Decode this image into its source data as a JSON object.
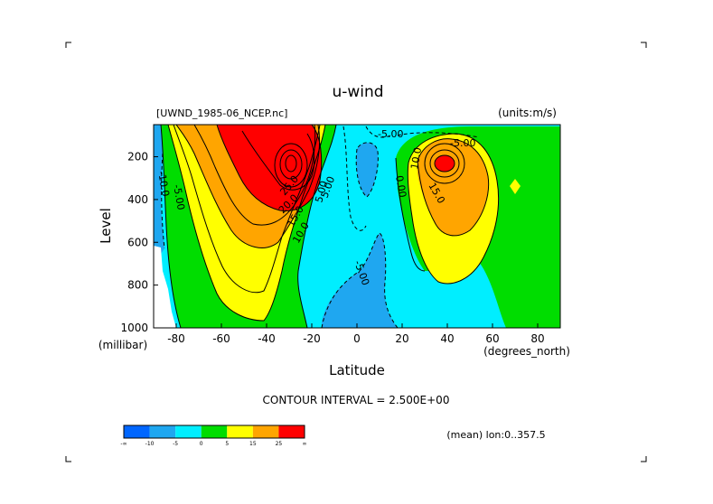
{
  "chart_data": {
    "type": "contour",
    "title": "u-wind",
    "file_label": "[UWND_1985-06_NCEP.nc]",
    "units_label": "(units:m/s)",
    "xlabel": "Latitude",
    "x_units": "(degrees_north)",
    "ylabel": "Level",
    "y_units": "(millibar)",
    "xlim": [
      -90,
      90
    ],
    "ylim": [
      1000,
      50
    ],
    "y_inverted": true,
    "x_ticks": [
      -80,
      -60,
      -40,
      -20,
      0,
      20,
      40,
      60,
      80
    ],
    "y_ticks": [
      200,
      400,
      600,
      800,
      1000
    ],
    "contour_interval_text": "CONTOUR INTERVAL = 2.500E+00",
    "contour_interval": 2.5,
    "mean_text": "(mean) lon:0..357.5",
    "colorbar": {
      "labels": [
        "-∞",
        "-10",
        "-5",
        "0",
        "5",
        "15",
        "25",
        "∞"
      ],
      "colors": [
        "#0066ff",
        "#1fa7f0",
        "#00eeff",
        "#00dd00",
        "#ffff00",
        "#ffa500",
        "#ff0000"
      ]
    },
    "contour_labels": [
      "-10.0",
      "-5.00",
      "25.0",
      "20.0",
      "15.0",
      "10.0",
      "5.00",
      "-5.00",
      "0.00",
      "-5.00",
      "-5.00",
      "10.0",
      "15.0",
      "5.00"
    ],
    "features": [
      {
        "name": "southern-hemisphere-jet",
        "lat": -30,
        "level": 200,
        "max_value": 35
      },
      {
        "name": "northern-hemisphere-jet",
        "lat": 40,
        "level": 200,
        "max_value": 27.5
      },
      {
        "name": "equatorial-easterlies",
        "lat": 0,
        "level": 200,
        "min_value": -10
      }
    ]
  }
}
